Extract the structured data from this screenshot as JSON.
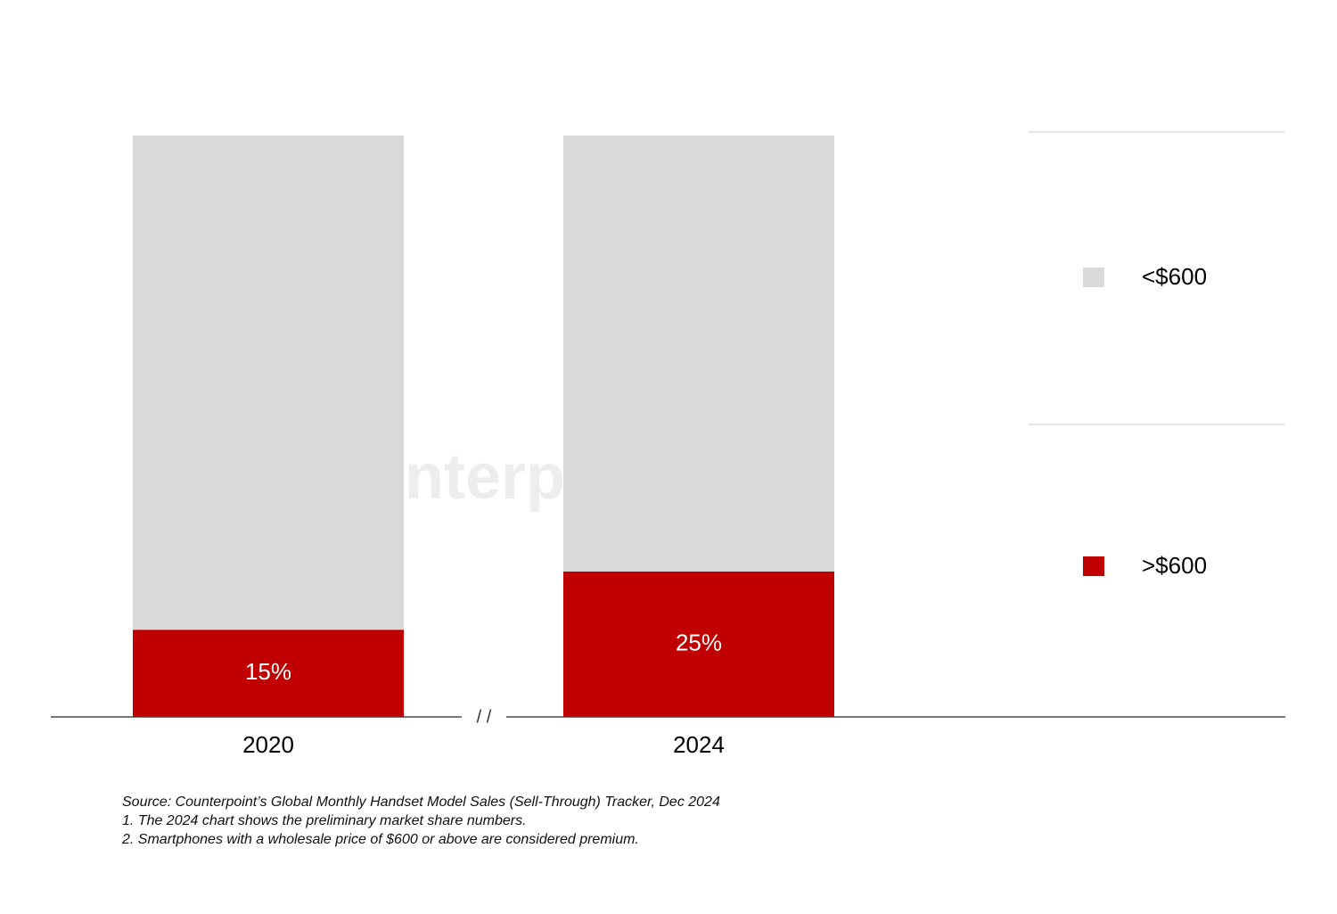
{
  "chart_data": {
    "type": "stacked_bar",
    "categories": [
      "2020",
      "2024"
    ],
    "series": [
      {
        "name": ">$600",
        "color": "#c00000",
        "values": [
          15,
          25
        ],
        "value_labels": [
          "15%",
          "25%"
        ]
      },
      {
        "name": "<$600",
        "color": "#d9d9d9",
        "values": [
          85,
          75
        ]
      }
    ],
    "axis_break": "/ /",
    "watermark": "Counterpoint",
    "notes": [
      "Source: Counterpoint’s Global Monthly Handset Model Sales (Sell-Through) Tracker, Dec 2024",
      "1. The 2024 chart shows the preliminary market share numbers.",
      "2. Smartphones with a wholesale price of $600 or above are considered premium."
    ]
  }
}
